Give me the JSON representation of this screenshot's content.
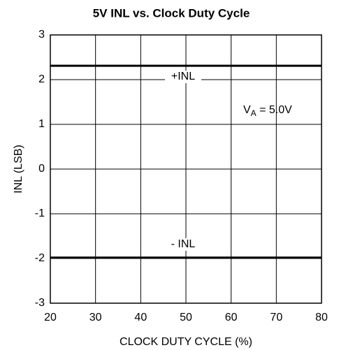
{
  "chart_data": {
    "type": "line",
    "title": "5V INL vs. Clock Duty Cycle",
    "x_label": "CLOCK DUTY CYCLE (%)",
    "y_label": "INL (LSB)",
    "x": [
      20,
      30,
      40,
      50,
      60,
      70,
      80
    ],
    "series": [
      {
        "name": "+INL",
        "color": "#000000",
        "values": [
          2.31,
          2.31,
          2.31,
          2.31,
          2.31,
          2.31,
          2.31
        ]
      },
      {
        "name": "- INL",
        "color": "#000000",
        "values": [
          -1.98,
          -1.98,
          -1.98,
          -1.98,
          -1.98,
          -1.98,
          -1.98
        ]
      }
    ],
    "annotation": {
      "base": "V",
      "subscript": "A",
      "tail": " = 5.0V"
    },
    "xlim": [
      20,
      80
    ],
    "xticks": [
      20,
      30,
      40,
      50,
      60,
      70,
      80
    ],
    "ylim": [
      -3,
      3
    ],
    "yticks": [
      -3,
      -2,
      -1,
      0,
      1,
      2,
      3
    ],
    "grid": true
  }
}
